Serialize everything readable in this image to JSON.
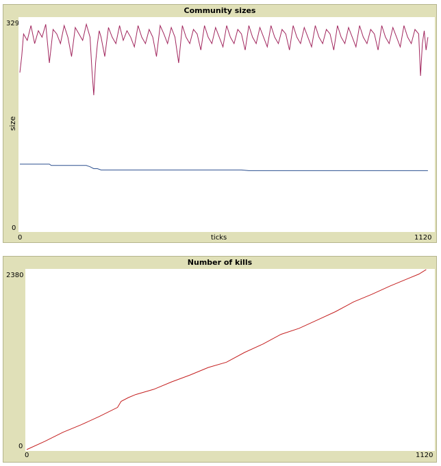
{
  "chart_data": [
    {
      "type": "line",
      "title": "Community sizes",
      "xlabel": "ticks",
      "ylabel": "size",
      "xlim": [
        0,
        1120
      ],
      "ylim": [
        0,
        329
      ],
      "x_tick_labels": [
        "0",
        "1120"
      ],
      "y_tick_labels": [
        "0",
        "329"
      ],
      "grid": false,
      "series": [
        {
          "color": "#a0245c",
          "x": [
            0,
            5,
            10,
            20,
            30,
            40,
            50,
            60,
            70,
            80,
            90,
            100,
            110,
            120,
            130,
            140,
            150,
            160,
            170,
            180,
            190,
            195,
            200,
            205,
            210,
            215,
            220,
            230,
            240,
            250,
            260,
            270,
            280,
            290,
            300,
            310,
            320,
            330,
            340,
            350,
            360,
            370,
            380,
            390,
            400,
            410,
            420,
            430,
            440,
            450,
            460,
            470,
            480,
            490,
            500,
            510,
            520,
            530,
            540,
            550,
            560,
            570,
            580,
            590,
            600,
            610,
            620,
            630,
            640,
            650,
            660,
            670,
            680,
            690,
            700,
            710,
            720,
            730,
            740,
            750,
            760,
            770,
            780,
            790,
            800,
            810,
            820,
            830,
            840,
            850,
            860,
            870,
            880,
            890,
            900,
            910,
            920,
            930,
            940,
            950,
            960,
            970,
            980,
            990,
            1000,
            1010,
            1020,
            1030,
            1040,
            1050,
            1060,
            1070,
            1080,
            1085,
            1090,
            1095,
            1100,
            1105
          ],
          "y": [
            245,
            270,
            305,
            295,
            318,
            290,
            310,
            300,
            320,
            260,
            312,
            305,
            290,
            318,
            300,
            270,
            315,
            305,
            295,
            320,
            300,
            250,
            210,
            260,
            290,
            310,
            300,
            270,
            315,
            300,
            290,
            318,
            295,
            310,
            300,
            285,
            318,
            300,
            290,
            312,
            300,
            270,
            318,
            305,
            290,
            315,
            300,
            260,
            318,
            300,
            290,
            312,
            305,
            280,
            318,
            300,
            290,
            315,
            300,
            285,
            318,
            300,
            290,
            312,
            305,
            280,
            318,
            300,
            290,
            315,
            300,
            285,
            318,
            300,
            290,
            312,
            305,
            280,
            318,
            300,
            290,
            315,
            300,
            285,
            318,
            300,
            290,
            312,
            305,
            280,
            318,
            300,
            290,
            315,
            300,
            285,
            318,
            300,
            290,
            312,
            305,
            280,
            318,
            300,
            290,
            315,
            300,
            285,
            318,
            300,
            290,
            312,
            305,
            240,
            290,
            310,
            280,
            300
          ]
        },
        {
          "color": "#2a4e8e",
          "x": [
            0,
            80,
            85,
            180,
            190,
            200,
            210,
            220,
            230,
            600,
            620,
            1105
          ],
          "y": [
            103,
            103,
            101,
            101,
            99,
            96,
            96,
            94,
            94,
            94,
            93,
            93
          ]
        }
      ]
    },
    {
      "type": "line",
      "title": "Number of kills",
      "xlabel": "",
      "ylabel": "",
      "xlim": [
        0,
        1120
      ],
      "ylim": [
        0,
        2380
      ],
      "x_tick_labels": [
        "0",
        "1120"
      ],
      "y_tick_labels": [
        "0",
        "2380"
      ],
      "grid": false,
      "series": [
        {
          "color": "#c41e1e",
          "x": [
            0,
            50,
            100,
            150,
            200,
            250,
            260,
            280,
            300,
            350,
            400,
            450,
            500,
            550,
            600,
            650,
            700,
            750,
            800,
            850,
            900,
            950,
            1000,
            1050,
            1080,
            1100
          ],
          "y": [
            0,
            110,
            230,
            330,
            440,
            560,
            640,
            690,
            730,
            800,
            900,
            990,
            1090,
            1160,
            1290,
            1400,
            1530,
            1610,
            1720,
            1830,
            1960,
            2060,
            2170,
            2270,
            2330,
            2390
          ]
        }
      ]
    }
  ]
}
